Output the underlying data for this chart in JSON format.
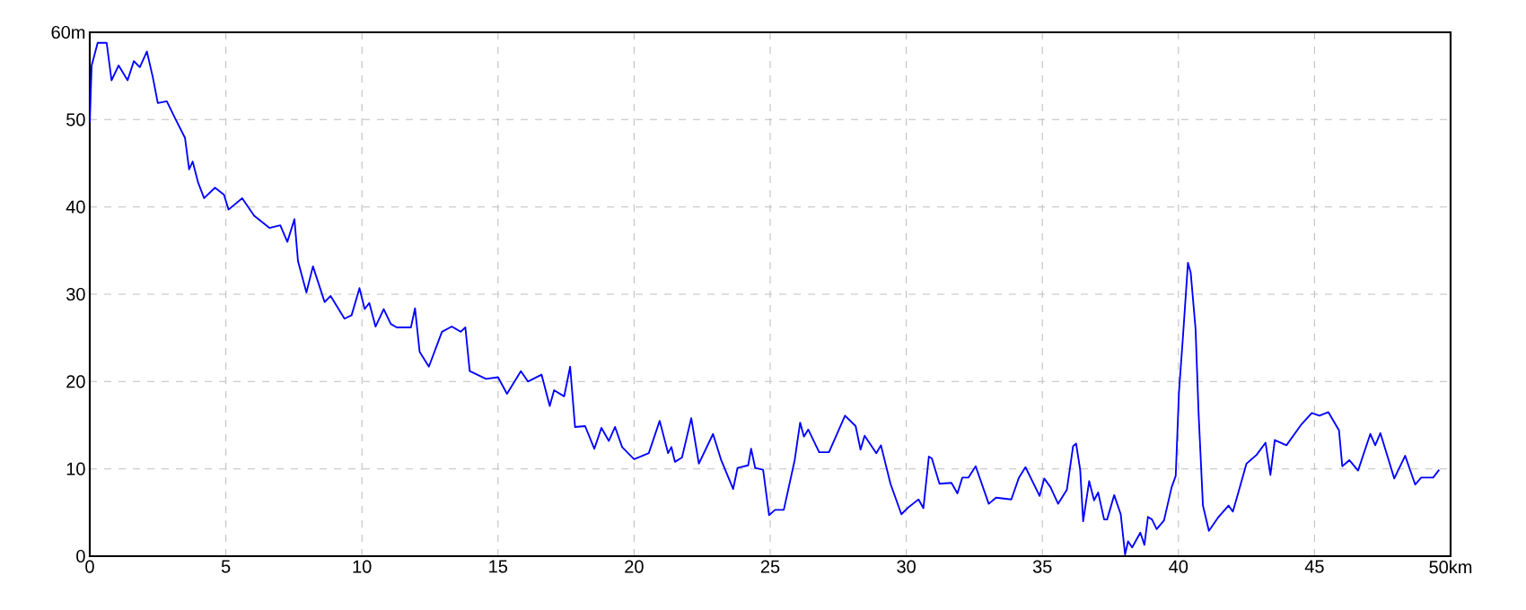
{
  "chart_data": {
    "type": "line",
    "x": [
      0,
      0.07,
      0.29,
      0.62,
      0.8,
      1.06,
      1.39,
      1.62,
      1.84,
      2.1,
      2.32,
      2.5,
      2.83,
      3.16,
      3.5,
      3.65,
      3.78,
      3.98,
      4.2,
      4.6,
      4.93,
      5.1,
      5.6,
      6.04,
      6.6,
      7.0,
      7.26,
      7.52,
      7.65,
      7.96,
      8.2,
      8.63,
      8.85,
      9.36,
      9.62,
      9.91,
      10.1,
      10.27,
      10.5,
      10.8,
      11.06,
      11.28,
      11.8,
      11.95,
      12.12,
      12.46,
      12.94,
      13.3,
      13.63,
      13.8,
      13.96,
      14.56,
      15.0,
      15.33,
      15.84,
      16.1,
      16.6,
      16.9,
      17.06,
      17.43,
      17.65,
      17.83,
      18.2,
      18.54,
      18.8,
      19.07,
      19.3,
      19.56,
      20.0,
      20.54,
      20.94,
      21.25,
      21.37,
      21.5,
      21.76,
      22.1,
      22.38,
      22.9,
      23.2,
      23.64,
      23.8,
      24.19,
      24.3,
      24.45,
      24.74,
      24.96,
      25.18,
      25.5,
      25.9,
      26.1,
      26.24,
      26.4,
      26.8,
      27.16,
      27.75,
      28.14,
      28.32,
      28.47,
      28.9,
      29.07,
      29.42,
      29.82,
      30.08,
      30.45,
      30.63,
      30.83,
      30.94,
      31.22,
      31.66,
      31.88,
      32.06,
      32.28,
      32.55,
      33.03,
      33.3,
      33.86,
      34.14,
      34.38,
      34.9,
      35.07,
      35.3,
      35.58,
      35.9,
      36.13,
      36.24,
      36.39,
      36.5,
      36.72,
      36.9,
      37.05,
      37.27,
      37.38,
      37.64,
      37.88,
      38.04,
      38.15,
      38.3,
      38.6,
      38.75,
      38.88,
      39.03,
      39.2,
      39.47,
      39.75,
      39.9,
      40.02,
      40.17,
      40.35,
      40.45,
      40.63,
      40.74,
      40.9,
      41.12,
      41.45,
      41.84,
      42.0,
      42.22,
      42.5,
      42.87,
      43.2,
      43.38,
      43.54,
      43.97,
      44.52,
      44.9,
      45.18,
      45.51,
      45.9,
      46.02,
      46.28,
      46.6,
      47.05,
      47.23,
      47.42,
      47.93,
      48.33,
      48.7,
      48.92,
      49.36,
      49.58
    ],
    "values": [
      49.7,
      56.2,
      58.8,
      58.8,
      54.5,
      56.2,
      54.5,
      56.7,
      56.0,
      57.8,
      54.8,
      51.9,
      52.1,
      50.0,
      47.9,
      44.3,
      45.2,
      42.8,
      41.0,
      42.2,
      41.4,
      39.7,
      41.0,
      39.0,
      37.6,
      37.9,
      36.0,
      38.6,
      33.8,
      30.2,
      33.2,
      29.1,
      29.8,
      27.2,
      27.6,
      30.7,
      28.3,
      29.0,
      26.3,
      28.3,
      26.6,
      26.2,
      26.2,
      28.4,
      23.4,
      21.7,
      25.7,
      26.3,
      25.7,
      26.2,
      21.2,
      20.3,
      20.5,
      18.6,
      21.2,
      20.0,
      20.8,
      17.2,
      19.0,
      18.3,
      21.7,
      14.8,
      14.9,
      12.3,
      14.7,
      13.2,
      14.8,
      12.5,
      11.1,
      11.8,
      15.5,
      11.8,
      12.5,
      10.8,
      11.3,
      15.8,
      10.6,
      14.0,
      11.0,
      7.7,
      10.1,
      10.4,
      12.3,
      10.1,
      9.9,
      4.7,
      5.3,
      5.3,
      11.0,
      15.3,
      13.7,
      14.5,
      11.9,
      11.9,
      16.1,
      14.9,
      12.2,
      13.8,
      11.8,
      12.7,
      8.3,
      4.8,
      5.6,
      6.5,
      5.5,
      11.4,
      11.2,
      8.3,
      8.4,
      7.2,
      9.0,
      9.0,
      10.3,
      6.0,
      6.7,
      6.5,
      9.0,
      10.2,
      6.9,
      8.9,
      7.9,
      6.0,
      7.6,
      12.6,
      12.9,
      9.9,
      4.0,
      8.6,
      6.4,
      7.3,
      4.2,
      4.2,
      7.0,
      4.8,
      0.2,
      1.7,
      1.0,
      2.7,
      1.3,
      4.5,
      4.2,
      3.1,
      4.1,
      7.9,
      9.2,
      18.8,
      25.3,
      33.6,
      32.5,
      26.0,
      16.4,
      5.8,
      2.9,
      4.4,
      5.8,
      5.1,
      7.5,
      10.6,
      11.6,
      13.0,
      9.3,
      13.3,
      12.7,
      15.1,
      16.4,
      16.1,
      16.5,
      14.4,
      10.3,
      11.0,
      9.8,
      14.0,
      12.7,
      14.1,
      8.9,
      11.5,
      8.2,
      9.0,
      9.0,
      9.9
    ],
    "color": "#0000ff",
    "xlim": [
      0,
      50
    ],
    "ylim": [
      0,
      60
    ],
    "xticks": [
      0,
      5,
      10,
      15,
      20,
      25,
      30,
      35,
      40,
      45,
      {
        "value": 50,
        "label": "50km"
      }
    ],
    "yticks": [
      0,
      10,
      20,
      30,
      40,
      50,
      {
        "value": 60,
        "label": "60m"
      }
    ],
    "grid": true,
    "line_style": "solid"
  }
}
